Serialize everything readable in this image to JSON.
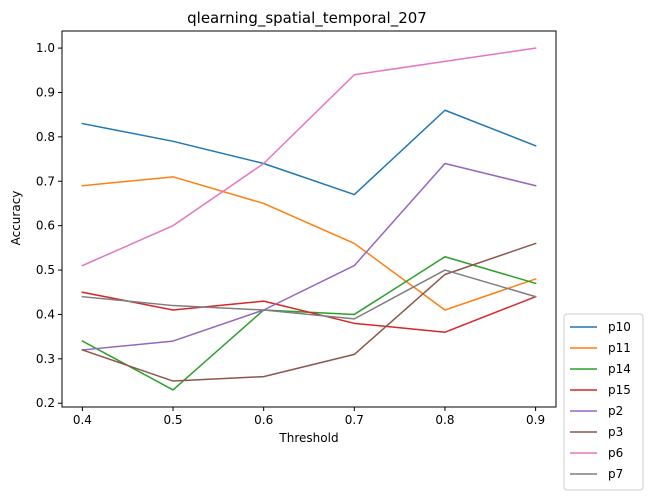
{
  "chart_data": {
    "type": "line",
    "title": "qlearning_spatial_temporal_207",
    "xlabel": "Threshold",
    "ylabel": "Accuracy",
    "x": [
      0.4,
      0.5,
      0.6,
      0.7,
      0.8,
      0.9
    ],
    "x_ticks": [
      "0.4",
      "0.5",
      "0.6",
      "0.7",
      "0.8",
      "0.9"
    ],
    "y_ticks": [
      "0.2",
      "0.3",
      "0.4",
      "0.5",
      "0.6",
      "0.7",
      "0.8",
      "0.9",
      "1.0"
    ],
    "xlim": [
      0.3775,
      0.9225
    ],
    "ylim": [
      0.1915,
      1.0385
    ],
    "grid": false,
    "legend_position": "right-bottom, outside plot",
    "series": [
      {
        "name": "p10",
        "color": "#1f77b4",
        "values": [
          0.83,
          0.79,
          0.74,
          0.67,
          0.86,
          0.78
        ]
      },
      {
        "name": "p11",
        "color": "#ff7f0e",
        "values": [
          0.69,
          0.71,
          0.65,
          0.56,
          0.41,
          0.48
        ]
      },
      {
        "name": "p14",
        "color": "#2ca02c",
        "values": [
          0.34,
          0.23,
          0.41,
          0.4,
          0.53,
          0.47
        ]
      },
      {
        "name": "p15",
        "color": "#d62728",
        "values": [
          0.45,
          0.41,
          0.43,
          0.38,
          0.36,
          0.44
        ]
      },
      {
        "name": "p2",
        "color": "#9467bd",
        "values": [
          0.32,
          0.34,
          0.41,
          0.51,
          0.74,
          0.69
        ]
      },
      {
        "name": "p3",
        "color": "#8c564b",
        "values": [
          0.32,
          0.25,
          0.26,
          0.31,
          0.49,
          0.56
        ]
      },
      {
        "name": "p6",
        "color": "#e377c2",
        "values": [
          0.51,
          0.6,
          0.74,
          0.94,
          0.97,
          1.0
        ]
      },
      {
        "name": "p7",
        "color": "#7f7f7f",
        "values": [
          0.44,
          0.42,
          0.41,
          0.39,
          0.5,
          0.44
        ]
      }
    ]
  }
}
